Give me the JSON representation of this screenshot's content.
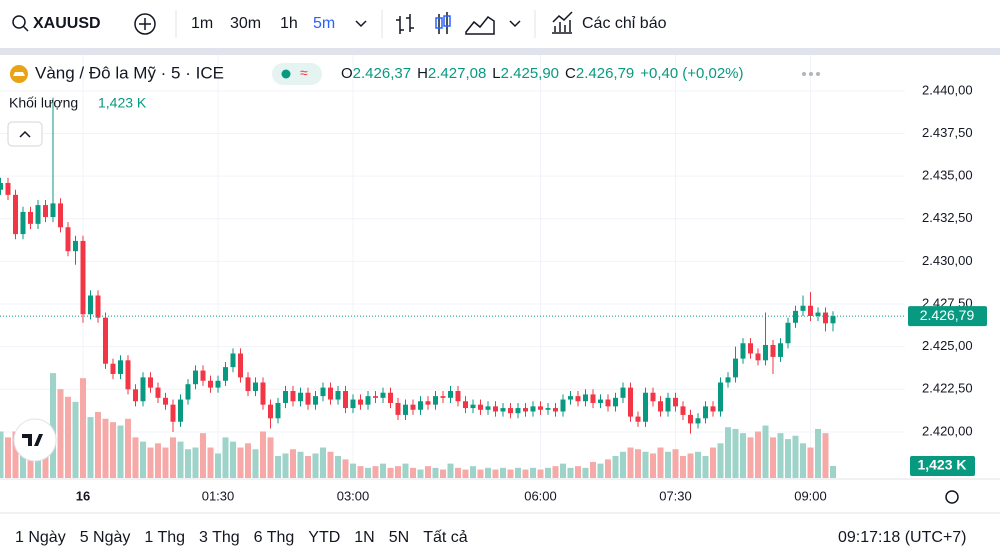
{
  "toolbar": {
    "symbol": "XAUUSD",
    "intervals": [
      "1m",
      "30m",
      "1h",
      "5m"
    ],
    "active_interval_index": 3,
    "indicators": "Các chỉ báo"
  },
  "ranges": [
    "1 Ngày",
    "5 Ngày",
    "1 Thg",
    "3 Thg",
    "6 Thg",
    "YTD",
    "1N",
    "5N",
    "Tất cả"
  ],
  "clock": "09:17:18 (UTC+7)",
  "chart_data": {
    "type": "candlestick",
    "title": "Vàng / Đô la Mỹ · 5 · ICE",
    "categories": [
      null,
      null,
      null,
      null,
      null,
      null,
      null,
      null,
      null,
      null,
      null,
      "16",
      null,
      null,
      null,
      null,
      null,
      null,
      null,
      null,
      null,
      null,
      null,
      null,
      null,
      null,
      null,
      null,
      null,
      "01:30",
      null,
      null,
      null,
      null,
      null,
      null,
      null,
      null,
      null,
      null,
      null,
      null,
      null,
      null,
      null,
      null,
      null,
      "03:00",
      null,
      null,
      null,
      null,
      null,
      null,
      null,
      null,
      null,
      null,
      null,
      null,
      null,
      null,
      null,
      null,
      null,
      null,
      null,
      null,
      null,
      null,
      null,
      null,
      "06:00",
      null,
      null,
      null,
      null,
      null,
      null,
      null,
      null,
      null,
      null,
      null,
      null,
      null,
      null,
      null,
      null,
      null,
      "07:30",
      null,
      null,
      null,
      null,
      null,
      null,
      null,
      null,
      null,
      null,
      null,
      null,
      null,
      null,
      null,
      null,
      null,
      "09:00",
      null,
      null,
      null
    ],
    "open": [
      2434.2,
      2434.6,
      2433.9,
      2431.6,
      2432.9,
      2432.2,
      2433.3,
      2432.6,
      2433.4,
      2432.0,
      2430.6,
      2431.2,
      2426.9,
      2428.0,
      2426.7,
      2424.0,
      2423.4,
      2424.2,
      2422.5,
      2421.8,
      2423.2,
      2422.6,
      2422.0,
      2421.6,
      2420.6,
      2421.9,
      2422.8,
      2423.6,
      2423.0,
      2422.6,
      2423.0,
      2423.8,
      2424.6,
      2423.2,
      2422.4,
      2422.9,
      2421.6,
      2420.8,
      2421.7,
      2422.4,
      2421.8,
      2422.3,
      2421.6,
      2422.1,
      2422.6,
      2421.9,
      2422.4,
      2421.4,
      2421.9,
      2421.6,
      2422.1,
      2422.0,
      2422.3,
      2421.7,
      2421.0,
      2421.6,
      2421.3,
      2421.8,
      2421.6,
      2422.1,
      2422.0,
      2422.4,
      2421.8,
      2421.4,
      2421.6,
      2421.3,
      2421.5,
      2421.2,
      2421.4,
      2421.1,
      2421.4,
      2421.2,
      2421.5,
      2421.3,
      2421.4,
      2421.2,
      2421.9,
      2422.1,
      2421.8,
      2422.2,
      2421.7,
      2421.9,
      2421.5,
      2422.0,
      2422.6,
      2420.9,
      2420.6,
      2422.3,
      2421.8,
      2421.2,
      2422.0,
      2421.5,
      2421.0,
      2420.5,
      2420.8,
      2421.5,
      2421.2,
      2422.9,
      2423.2,
      2424.3,
      2425.2,
      2424.6,
      2424.2,
      2425.1,
      2424.4,
      2425.2,
      2426.4,
      2427.1,
      2427.4,
      2426.8,
      2427.0,
      2426.37
    ],
    "high": [
      2434.9,
      2434.9,
      2434.2,
      2433.2,
      2433.2,
      2433.6,
      2433.6,
      2439.6,
      2433.7,
      2432.3,
      2431.5,
      2431.5,
      2428.3,
      2428.3,
      2427.0,
      2424.3,
      2424.5,
      2424.5,
      2422.8,
      2423.5,
      2423.5,
      2422.9,
      2422.3,
      2421.9,
      2422.2,
      2423.1,
      2423.9,
      2423.9,
      2423.3,
      2423.3,
      2424.1,
      2424.9,
      2424.9,
      2423.5,
      2423.2,
      2423.2,
      2421.9,
      2422.0,
      2422.7,
      2422.7,
      2422.6,
      2422.6,
      2422.4,
      2422.9,
      2422.9,
      2422.7,
      2422.7,
      2422.2,
      2422.2,
      2422.4,
      2422.4,
      2422.6,
      2422.6,
      2422.0,
      2421.9,
      2421.9,
      2422.1,
      2422.1,
      2422.4,
      2422.4,
      2422.7,
      2422.7,
      2422.1,
      2421.9,
      2421.9,
      2421.8,
      2421.8,
      2421.7,
      2421.7,
      2421.7,
      2421.7,
      2421.8,
      2421.8,
      2421.7,
      2421.7,
      2422.2,
      2422.4,
      2422.4,
      2422.5,
      2422.5,
      2422.2,
      2422.2,
      2422.3,
      2422.9,
      2422.9,
      2421.2,
      2422.6,
      2422.6,
      2422.1,
      2422.3,
      2422.3,
      2421.8,
      2421.3,
      2421.1,
      2421.8,
      2421.8,
      2423.2,
      2423.5,
      2425.0,
      2425.5,
      2425.5,
      2424.9,
      2427.0,
      2425.4,
      2425.5,
      2426.7,
      2427.4,
      2428.0,
      2428.2,
      2427.3,
      2427.3,
      2427.08
    ],
    "low": [
      2433.9,
      2433.6,
      2431.3,
      2431.3,
      2431.9,
      2431.9,
      2432.3,
      2432.3,
      2431.7,
      2430.3,
      2429.8,
      2426.4,
      2426.6,
      2426.4,
      2423.7,
      2423.1,
      2423.1,
      2422.2,
      2421.5,
      2421.5,
      2422.3,
      2421.7,
      2421.3,
      2420.0,
      2420.3,
      2421.6,
      2422.5,
      2422.7,
      2422.3,
      2422.3,
      2422.7,
      2423.5,
      2422.9,
      2422.1,
      2422.1,
      2421.3,
      2420.2,
      2420.5,
      2421.4,
      2421.5,
      2421.5,
      2421.3,
      2421.3,
      2421.8,
      2421.6,
      2421.6,
      2421.1,
      2421.1,
      2421.3,
      2421.3,
      2421.7,
      2421.7,
      2421.4,
      2420.7,
      2420.7,
      2421.0,
      2421.0,
      2421.3,
      2421.3,
      2421.7,
      2421.7,
      2421.5,
      2421.1,
      2421.1,
      2421.0,
      2421.0,
      2420.9,
      2420.9,
      2420.8,
      2420.8,
      2420.9,
      2420.9,
      2421.0,
      2421.0,
      2420.9,
      2420.9,
      2421.6,
      2421.5,
      2421.5,
      2421.4,
      2421.4,
      2421.2,
      2421.2,
      2421.7,
      2420.6,
      2420.3,
      2420.3,
      2421.5,
      2420.9,
      2420.9,
      2421.2,
      2420.7,
      2419.9,
      2420.2,
      2420.5,
      2420.9,
      2420.9,
      2422.6,
      2422.9,
      2424.0,
      2424.3,
      2423.9,
      2423.9,
      2423.4,
      2424.1,
      2424.9,
      2426.1,
      2426.8,
      2426.5,
      2426.5,
      2425.9,
      2425.9
    ],
    "close": [
      2434.6,
      2433.9,
      2431.6,
      2432.9,
      2432.2,
      2433.3,
      2432.6,
      2433.4,
      2432.0,
      2430.6,
      2431.2,
      2426.9,
      2428.0,
      2426.7,
      2424.0,
      2423.4,
      2424.2,
      2422.5,
      2421.8,
      2423.2,
      2422.6,
      2422.0,
      2421.6,
      2420.6,
      2421.9,
      2422.8,
      2423.6,
      2423.0,
      2422.6,
      2423.0,
      2423.8,
      2424.6,
      2423.2,
      2422.4,
      2422.9,
      2421.6,
      2420.8,
      2421.7,
      2422.4,
      2421.8,
      2422.3,
      2421.6,
      2422.1,
      2422.6,
      2421.9,
      2422.4,
      2421.4,
      2421.9,
      2421.6,
      2422.1,
      2422.0,
      2422.3,
      2421.7,
      2421.0,
      2421.6,
      2421.3,
      2421.8,
      2421.6,
      2422.1,
      2422.0,
      2422.4,
      2421.8,
      2421.4,
      2421.6,
      2421.3,
      2421.5,
      2421.2,
      2421.4,
      2421.1,
      2421.4,
      2421.2,
      2421.5,
      2421.3,
      2421.4,
      2421.2,
      2421.9,
      2422.1,
      2421.8,
      2422.2,
      2421.7,
      2421.9,
      2421.5,
      2422.0,
      2422.6,
      2420.9,
      2420.6,
      2422.3,
      2421.8,
      2421.2,
      2422.0,
      2421.5,
      2421.0,
      2420.5,
      2420.8,
      2421.5,
      2421.2,
      2422.9,
      2423.2,
      2424.3,
      2425.2,
      2424.6,
      2424.2,
      2425.1,
      2424.4,
      2425.2,
      2426.4,
      2427.1,
      2427.4,
      2426.8,
      2427.0,
      2426.37,
      2426.79
    ],
    "up_color": "#089981",
    "down_color": "#f23645",
    "volume": {
      "name": "Khối lượng",
      "last_label": "1,423 K",
      "up_color": "#9ed3c9",
      "down_color": "#f7a9a8",
      "values": [
        5500,
        4800,
        5500,
        6000,
        4300,
        5300,
        6500,
        12400,
        10500,
        9600,
        9000,
        11800,
        7200,
        7800,
        7000,
        6600,
        6200,
        7000,
        4800,
        4300,
        3600,
        4100,
        3600,
        4800,
        4300,
        3400,
        3600,
        5300,
        3600,
        2900,
        4800,
        4300,
        3600,
        4100,
        3400,
        5500,
        4800,
        2600,
        2900,
        3400,
        3100,
        2600,
        2900,
        3600,
        3100,
        2600,
        2200,
        1700,
        1400,
        1200,
        1400,
        1700,
        1200,
        1400,
        1700,
        1200,
        1000,
        1400,
        1200,
        1000,
        1700,
        1200,
        1000,
        1400,
        1000,
        1200,
        1000,
        1200,
        1000,
        1200,
        1000,
        1200,
        1000,
        1200,
        1400,
        1700,
        1200,
        1400,
        1200,
        1900,
        1700,
        2200,
        2600,
        3100,
        3600,
        3400,
        3100,
        2900,
        3600,
        3100,
        3400,
        2600,
        2900,
        3100,
        2600,
        3600,
        4100,
        6000,
        5800,
        5300,
        4800,
        5500,
        6200,
        4800,
        5300,
        4600,
        5000,
        4100,
        3600,
        5800,
        5300,
        1423
      ]
    },
    "ylim": [
      2417.3,
      2442.1
    ],
    "y2lim": [
      0,
      50000
    ],
    "yticks": [
      {
        "value": 2420,
        "label": "2.420,00"
      },
      {
        "value": 2422.5,
        "label": "2.422,50"
      },
      {
        "value": 2425,
        "label": "2.425,00"
      },
      {
        "value": 2427.5,
        "label": "2.427,50"
      },
      {
        "value": 2430,
        "label": "2.430,00"
      },
      {
        "value": 2432.5,
        "label": "2.432,50"
      },
      {
        "value": 2435,
        "label": "2.435,00"
      },
      {
        "value": 2437.5,
        "label": "2.437,50"
      },
      {
        "value": 2440,
        "label": "2.440,00"
      }
    ],
    "grid": true,
    "ohlc_legend": [
      {
        "key": "O",
        "value": 2426.37,
        "label": "2.426,37"
      },
      {
        "key": "H",
        "value": 2427.08,
        "label": "2.427,08"
      },
      {
        "key": "L",
        "value": 2425.9,
        "label": "2.425,90"
      },
      {
        "key": "C",
        "value": 2426.79,
        "label": "2.426,79"
      }
    ],
    "change": {
      "value": 0.4,
      "label": "+0,40"
    },
    "change_pct": {
      "value": 0.02,
      "label": "(+0,02%)"
    },
    "last_price": {
      "value": 2426.79,
      "label": "2.426,79"
    }
  }
}
